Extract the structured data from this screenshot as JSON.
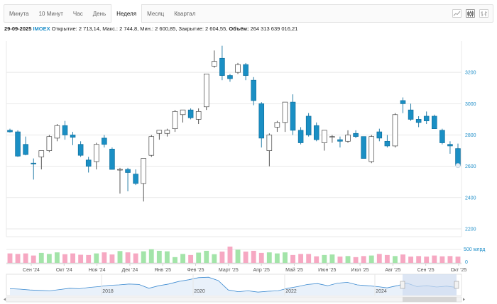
{
  "tabs": [
    {
      "label": "Минута",
      "active": false
    },
    {
      "label": "10 Минут",
      "active": false
    },
    {
      "label": "Час",
      "active": false
    },
    {
      "label": "День",
      "active": false
    },
    {
      "label": "Неделя",
      "active": true
    },
    {
      "label": "Месяц",
      "active": false
    },
    {
      "label": "Квартал",
      "active": false
    }
  ],
  "view_icons": [
    "line-chart-icon",
    "candlestick-chart-icon",
    "bar-chart-icon"
  ],
  "info": {
    "date": "29-09-2025",
    "ticker": "IMOEX",
    "open_label": "Открытие:",
    "open": "2 713,14,",
    "high_label": "Макс.:",
    "high": "2 744,8,",
    "low_label": "Мин.:",
    "low": "2 600,85,",
    "close_label": "Закрытие:",
    "close": "2 604,55,",
    "volume_label": "Объём:",
    "volume": "264 313 639 016,21"
  },
  "colors": {
    "up_fill": "#ffffff",
    "up_stroke": "#444444",
    "down_fill": "#1a8fc4",
    "down_stroke": "#0f6f9e",
    "volume_up": "#a3e4a9",
    "volume_down": "#f6a8c2",
    "grid": "#e8e8e8",
    "navigator_line": "#3d8bd1",
    "navigator_fill": "#e9f1fa",
    "navigator_selection": "#cfdcef"
  },
  "chart_data": {
    "type": "candlestick",
    "y_axis": {
      "ticks": [
        2200,
        2400,
        2600,
        2800,
        3000,
        3200
      ],
      "range": [
        2150,
        3400
      ]
    },
    "volume_axis": {
      "ticks": [
        "0",
        "500 млрд"
      ]
    },
    "x_labels": [
      "Сен '24",
      "Окт '24",
      "Ноя '24",
      "Дек '24",
      "Янв '25",
      "Фев '25",
      "Март '25",
      "Апр '25",
      "Май '25",
      "Июн '25",
      "Июл '25",
      "Авг '25",
      "Сен '25",
      "Окт '25"
    ],
    "candles": [
      {
        "o": 2830,
        "h": 2840,
        "l": 2815,
        "c": 2820
      },
      {
        "o": 2820,
        "h": 2830,
        "l": 2660,
        "c": 2665
      },
      {
        "o": 2740,
        "h": 2790,
        "l": 2670,
        "c": 2675
      },
      {
        "o": 2620,
        "h": 2650,
        "l": 2515,
        "c": 2615
      },
      {
        "o": 2660,
        "h": 2700,
        "l": 2580,
        "c": 2700
      },
      {
        "o": 2700,
        "h": 2800,
        "l": 2690,
        "c": 2790
      },
      {
        "o": 2780,
        "h": 2870,
        "l": 2760,
        "c": 2860
      },
      {
        "o": 2860,
        "h": 2890,
        "l": 2770,
        "c": 2800
      },
      {
        "o": 2800,
        "h": 2820,
        "l": 2735,
        "c": 2785
      },
      {
        "o": 2740,
        "h": 2760,
        "l": 2660,
        "c": 2670
      },
      {
        "o": 2640,
        "h": 2660,
        "l": 2560,
        "c": 2600
      },
      {
        "o": 2630,
        "h": 2750,
        "l": 2580,
        "c": 2740
      },
      {
        "o": 2780,
        "h": 2800,
        "l": 2720,
        "c": 2740
      },
      {
        "o": 2710,
        "h": 2720,
        "l": 2580,
        "c": 2580
      },
      {
        "o": 2580,
        "h": 2590,
        "l": 2425,
        "c": 2580
      },
      {
        "o": 2580,
        "h": 2590,
        "l": 2440,
        "c": 2560
      },
      {
        "o": 2550,
        "h": 2580,
        "l": 2480,
        "c": 2490
      },
      {
        "o": 2490,
        "h": 2650,
        "l": 2375,
        "c": 2650
      },
      {
        "o": 2670,
        "h": 2800,
        "l": 2660,
        "c": 2790
      },
      {
        "o": 2810,
        "h": 2830,
        "l": 2770,
        "c": 2830
      },
      {
        "o": 2810,
        "h": 2840,
        "l": 2790,
        "c": 2830
      },
      {
        "o": 2840,
        "h": 2960,
        "l": 2820,
        "c": 2950
      },
      {
        "o": 2930,
        "h": 2960,
        "l": 2880,
        "c": 2960
      },
      {
        "o": 2960,
        "h": 2970,
        "l": 2900,
        "c": 2910
      },
      {
        "o": 2900,
        "h": 2970,
        "l": 2870,
        "c": 2950
      },
      {
        "o": 2980,
        "h": 3190,
        "l": 2960,
        "c": 3190
      },
      {
        "o": 3240,
        "h": 3340,
        "l": 3230,
        "c": 3270
      },
      {
        "o": 3290,
        "h": 3370,
        "l": 3150,
        "c": 3180
      },
      {
        "o": 3180,
        "h": 3190,
        "l": 3140,
        "c": 3160
      },
      {
        "o": 3200,
        "h": 3260,
        "l": 3190,
        "c": 3250
      },
      {
        "o": 3250,
        "h": 3260,
        "l": 3150,
        "c": 3180
      },
      {
        "o": 3150,
        "h": 3170,
        "l": 2990,
        "c": 3020
      },
      {
        "o": 3000,
        "h": 3010,
        "l": 2720,
        "c": 2780
      },
      {
        "o": 2700,
        "h": 2810,
        "l": 2600,
        "c": 2800
      },
      {
        "o": 2850,
        "h": 2890,
        "l": 2820,
        "c": 2880
      },
      {
        "o": 2880,
        "h": 3010,
        "l": 2820,
        "c": 3010
      },
      {
        "o": 3010,
        "h": 3060,
        "l": 2800,
        "c": 2830
      },
      {
        "o": 2830,
        "h": 2850,
        "l": 2740,
        "c": 2750
      },
      {
        "o": 2920,
        "h": 2940,
        "l": 2790,
        "c": 2800
      },
      {
        "o": 2860,
        "h": 2880,
        "l": 2760,
        "c": 2770
      },
      {
        "o": 2750,
        "h": 2830,
        "l": 2700,
        "c": 2830
      },
      {
        "o": 2790,
        "h": 2800,
        "l": 2750,
        "c": 2790
      },
      {
        "o": 2770,
        "h": 2790,
        "l": 2720,
        "c": 2760
      },
      {
        "o": 2760,
        "h": 2830,
        "l": 2750,
        "c": 2800
      },
      {
        "o": 2810,
        "h": 2830,
        "l": 2780,
        "c": 2790
      },
      {
        "o": 2790,
        "h": 2790,
        "l": 2650,
        "c": 2650
      },
      {
        "o": 2630,
        "h": 2800,
        "l": 2620,
        "c": 2790
      },
      {
        "o": 2820,
        "h": 2840,
        "l": 2760,
        "c": 2780
      },
      {
        "o": 2760,
        "h": 2800,
        "l": 2720,
        "c": 2730
      },
      {
        "o": 2730,
        "h": 2940,
        "l": 2720,
        "c": 2930
      },
      {
        "o": 3020,
        "h": 3040,
        "l": 2940,
        "c": 3000
      },
      {
        "o": 2960,
        "h": 3000,
        "l": 2890,
        "c": 2900
      },
      {
        "o": 2900,
        "h": 2920,
        "l": 2850,
        "c": 2880
      },
      {
        "o": 2920,
        "h": 2950,
        "l": 2870,
        "c": 2890
      },
      {
        "o": 2920,
        "h": 2930,
        "l": 2840,
        "c": 2840
      },
      {
        "o": 2830,
        "h": 2840,
        "l": 2740,
        "c": 2750
      },
      {
        "o": 2740,
        "h": 2760,
        "l": 2680,
        "c": 2730
      },
      {
        "o": 2713.14,
        "h": 2744.8,
        "l": 2600.85,
        "c": 2604.55
      }
    ],
    "volumes": [
      0.36,
      0.34,
      0.36,
      0.28,
      0.38,
      0.34,
      0.4,
      0.33,
      0.36,
      0.31,
      0.3,
      0.36,
      0.4,
      0.32,
      0.45,
      0.4,
      0.36,
      0.44,
      0.52,
      0.46,
      0.44,
      0.22,
      0.34,
      0.3,
      0.39,
      0.46,
      0.33,
      0.43,
      0.62,
      0.5,
      0.43,
      0.46,
      0.38,
      0.4,
      0.36,
      0.4,
      0.3,
      0.34,
      0.34,
      0.25,
      0.3,
      0.32,
      0.24,
      0.26,
      0.22,
      0.26,
      0.28,
      0.34,
      0.3,
      0.26,
      0.32,
      0.24,
      0.26,
      0.24,
      0.28,
      0.25,
      0.26,
      0.24
    ],
    "navigator": {
      "year_labels": [
        "2018",
        "2020",
        "2022",
        "2024"
      ],
      "series": [
        2550,
        2500,
        2400,
        2350,
        2300,
        2450,
        2600,
        2550,
        2700,
        2800,
        2950,
        3000,
        3100,
        3050,
        2600,
        2900,
        3100,
        3400,
        3600,
        3850,
        3900,
        3500,
        2400,
        2200,
        2300,
        2150,
        2250,
        2300,
        2600,
        2800,
        3050,
        3150,
        2900,
        3200,
        3300,
        3000,
        2900,
        2800,
        2650,
        2900,
        3200,
        2800,
        2900,
        2750,
        2850,
        2700
      ]
    }
  }
}
